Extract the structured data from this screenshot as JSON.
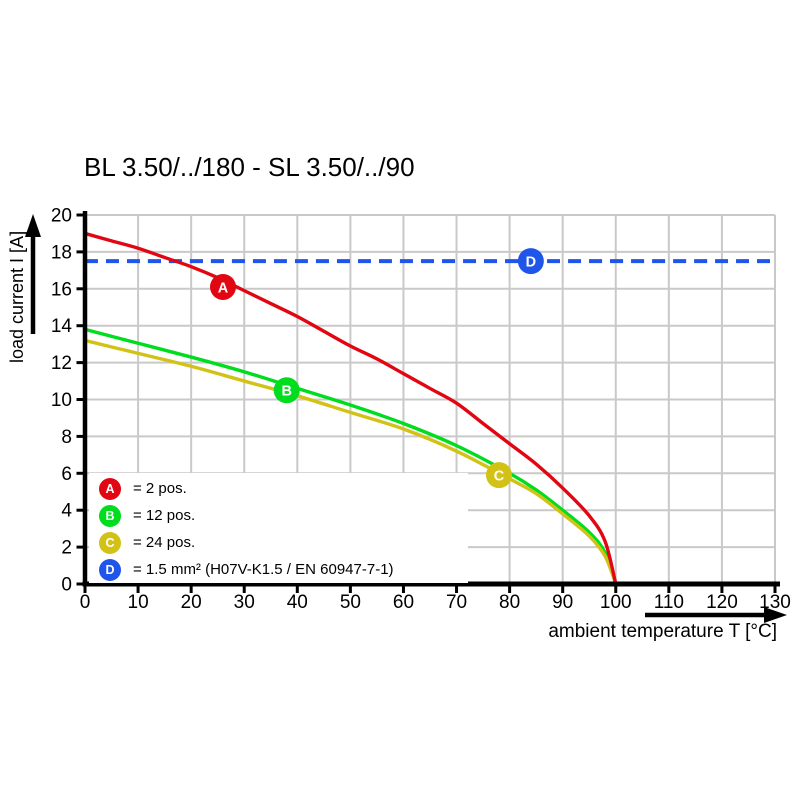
{
  "chart_data": {
    "type": "line",
    "title": "BL 3.50/../180 - SL 3.50/../90",
    "xlabel": "ambient temperature T [°C]",
    "ylabel": "load current I [A]",
    "xlim": [
      0,
      130
    ],
    "ylim": [
      0,
      20
    ],
    "x_ticks": [
      0,
      10,
      20,
      30,
      40,
      50,
      60,
      70,
      80,
      90,
      100,
      110,
      120,
      130
    ],
    "y_ticks": [
      0,
      2,
      4,
      6,
      8,
      10,
      12,
      14,
      16,
      18,
      20
    ],
    "grid": true,
    "grid_color": "#c9c9c9",
    "legend_position": "bottom-left",
    "series": [
      {
        "name": "A",
        "label": "2 pos.",
        "legend_text": "= 2 pos.",
        "color": "#e20613",
        "style": "solid",
        "points": [
          [
            0,
            19
          ],
          [
            5,
            18.6
          ],
          [
            10,
            18.2
          ],
          [
            15,
            17.7
          ],
          [
            20,
            17.2
          ],
          [
            25,
            16.6
          ],
          [
            30,
            15.9
          ],
          [
            35,
            15.2
          ],
          [
            40,
            14.5
          ],
          [
            45,
            13.7
          ],
          [
            50,
            12.9
          ],
          [
            55,
            12.2
          ],
          [
            60,
            11.4
          ],
          [
            65,
            10.6
          ],
          [
            70,
            9.8
          ],
          [
            75,
            8.7
          ],
          [
            80,
            7.6
          ],
          [
            85,
            6.5
          ],
          [
            90,
            5.2
          ],
          [
            95,
            3.7
          ],
          [
            98,
            2.3
          ],
          [
            100,
            0
          ]
        ],
        "marker": {
          "x": 26,
          "y": 16.1,
          "letter": "A"
        }
      },
      {
        "name": "B",
        "label": "12 pos.",
        "legend_text": "= 12 pos.",
        "color": "#00dc1e",
        "style": "solid",
        "points": [
          [
            0,
            13.8
          ],
          [
            10,
            13.05
          ],
          [
            20,
            12.3
          ],
          [
            30,
            11.5
          ],
          [
            40,
            10.6
          ],
          [
            50,
            9.7
          ],
          [
            60,
            8.7
          ],
          [
            70,
            7.5
          ],
          [
            80,
            6.0
          ],
          [
            85,
            5.1
          ],
          [
            90,
            4.0
          ],
          [
            95,
            2.8
          ],
          [
            98,
            1.7
          ],
          [
            100,
            0
          ]
        ],
        "marker": {
          "x": 38,
          "y": 10.5,
          "letter": "B"
        }
      },
      {
        "name": "C",
        "label": "24 pos.",
        "legend_text": "= 24 pos.",
        "color": "#d2c216",
        "style": "solid",
        "points": [
          [
            0,
            13.2
          ],
          [
            10,
            12.5
          ],
          [
            20,
            11.8
          ],
          [
            30,
            11.0
          ],
          [
            40,
            10.2
          ],
          [
            50,
            9.3
          ],
          [
            60,
            8.4
          ],
          [
            70,
            7.2
          ],
          [
            80,
            5.7
          ],
          [
            85,
            4.9
          ],
          [
            90,
            3.8
          ],
          [
            95,
            2.6
          ],
          [
            98,
            1.5
          ],
          [
            100,
            0
          ]
        ],
        "marker": {
          "x": 78,
          "y": 5.9,
          "letter": "C"
        }
      },
      {
        "name": "D",
        "label": "1.5 mm² (H07V-K1.5 / EN 60947-7-1)",
        "legend_text": "= 1.5 mm² (H07V-K1.5 / EN 60947-7-1)",
        "color": "#1f55ea",
        "style": "dashed",
        "points": [
          [
            0,
            17.5
          ],
          [
            130,
            17.5
          ]
        ],
        "marker": {
          "x": 84,
          "y": 17.5,
          "letter": "D"
        }
      }
    ],
    "draw_order": [
      "D",
      "B",
      "C",
      "A"
    ]
  }
}
